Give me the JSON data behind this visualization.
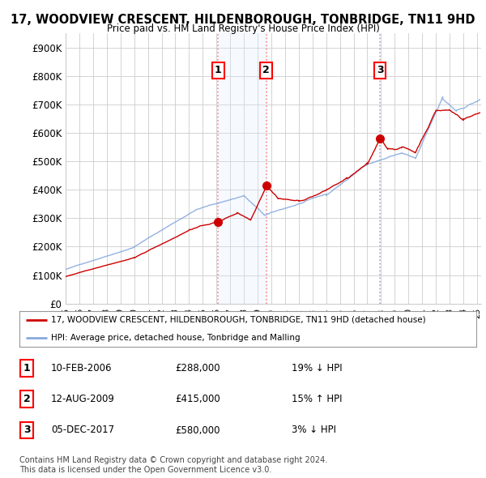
{
  "title": "17, WOODVIEW CRESCENT, HILDENBOROUGH, TONBRIDGE, TN11 9HD",
  "subtitle": "Price paid vs. HM Land Registry's House Price Index (HPI)",
  "xlim_start": 1995.0,
  "xlim_end": 2025.3,
  "ylim": [
    0,
    950000
  ],
  "yticks": [
    0,
    100000,
    200000,
    300000,
    400000,
    500000,
    600000,
    700000,
    800000,
    900000
  ],
  "ytick_labels": [
    "£0",
    "£100K",
    "£200K",
    "£300K",
    "£400K",
    "£500K",
    "£600K",
    "£700K",
    "£800K",
    "£900K"
  ],
  "transactions": [
    {
      "date_num": 2006.11,
      "price": 288000,
      "label": "1"
    },
    {
      "date_num": 2009.62,
      "price": 415000,
      "label": "2"
    },
    {
      "date_num": 2017.92,
      "price": 580000,
      "label": "3"
    }
  ],
  "vline_color": "#ff8888",
  "vline3_color": "#aaaacc",
  "hpi_color": "#88aadd",
  "price_color": "#cc0000",
  "dot_color": "#cc0000",
  "background_color": "#ffffff",
  "grid_color": "#cccccc",
  "shade_color": "#ddeeff",
  "legend_label_price": "17, WOODVIEW CRESCENT, HILDENBOROUGH, TONBRIDGE, TN11 9HD (detached house)",
  "legend_label_hpi": "HPI: Average price, detached house, Tonbridge and Malling",
  "table_rows": [
    {
      "num": "1",
      "date": "10-FEB-2006",
      "price": "£288,000",
      "pct": "19%",
      "dir": "↓",
      "hpi": "HPI"
    },
    {
      "num": "2",
      "date": "12-AUG-2009",
      "price": "£415,000",
      "pct": "15%",
      "dir": "↑",
      "hpi": "HPI"
    },
    {
      "num": "3",
      "date": "05-DEC-2017",
      "price": "£580,000",
      "pct": "3%",
      "dir": "↓",
      "hpi": "HPI"
    }
  ],
  "footnote": "Contains HM Land Registry data © Crown copyright and database right 2024.\nThis data is licensed under the Open Government Licence v3.0."
}
